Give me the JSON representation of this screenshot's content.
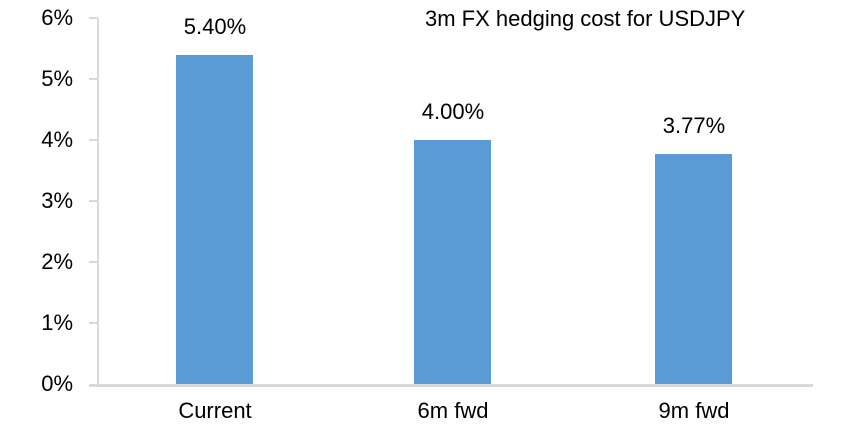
{
  "chart_data": {
    "type": "bar",
    "title": "3m FX hedging cost for USDJPY",
    "categories": [
      "Current",
      "6m fwd",
      "9m fwd"
    ],
    "values": [
      5.4,
      4.0,
      3.77
    ],
    "data_labels": [
      "5.40%",
      "4.00%",
      "3.77%"
    ],
    "y_ticks": [
      "6%",
      "5%",
      "4%",
      "3%",
      "2%",
      "1%",
      "0%"
    ],
    "ylim": [
      0,
      6
    ],
    "xlabel": "",
    "ylabel": "",
    "grid": false,
    "legend": false,
    "data_label_position": "above-bar",
    "colors": {
      "bar": "#5B9BD5",
      "axis": "#D9D9D9",
      "text": "#000000",
      "background": "#FFFFFF"
    }
  }
}
